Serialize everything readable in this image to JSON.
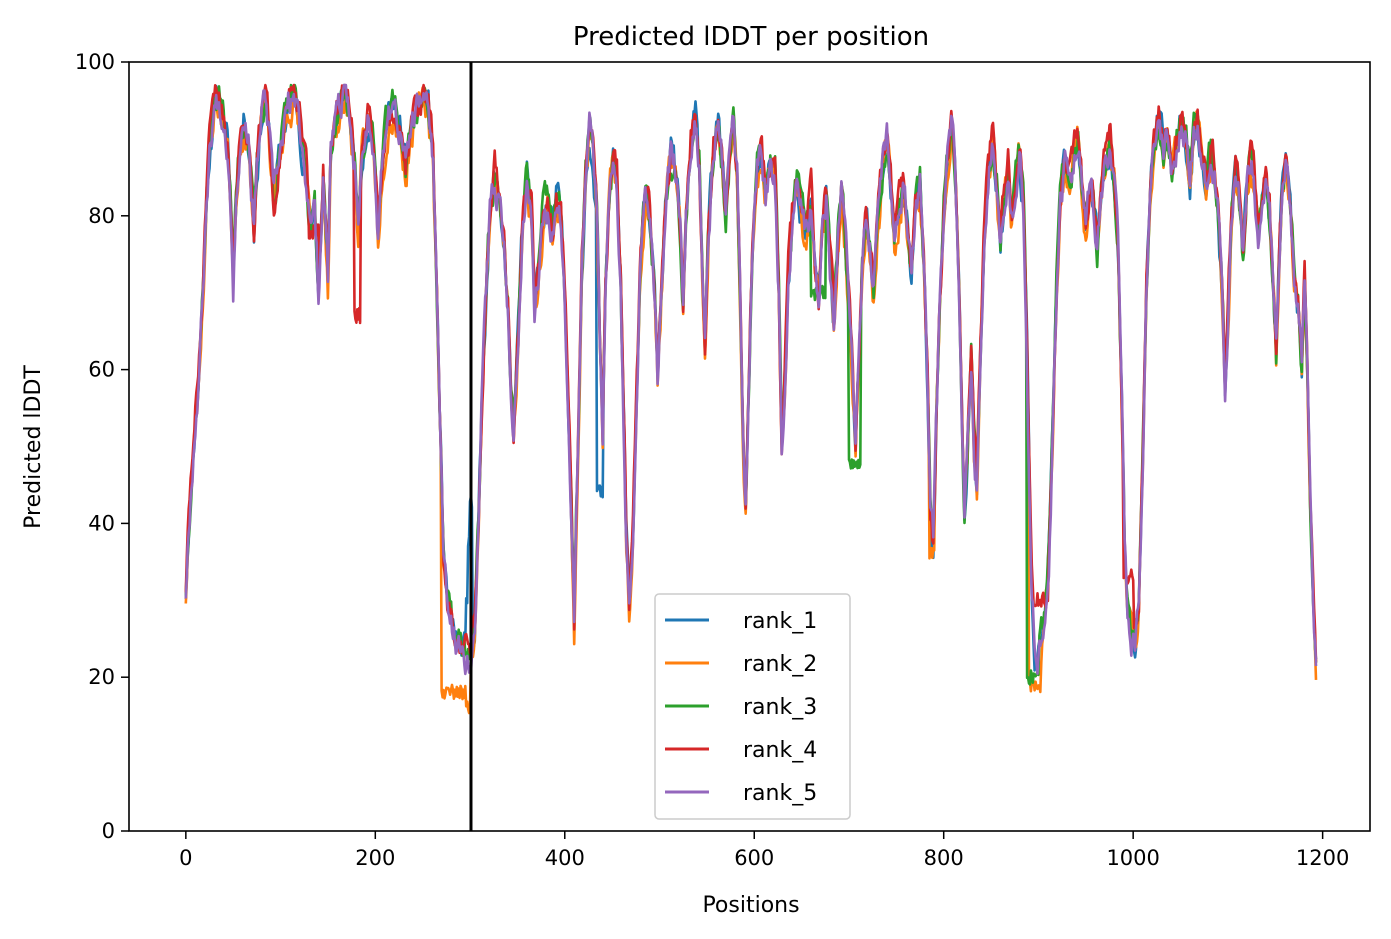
{
  "chart_data": {
    "type": "line",
    "title": "Predicted lDDT per position",
    "xlabel": "Positions",
    "ylabel": "Predicted lDDT",
    "xlim": [
      -60,
      1250
    ],
    "ylim": [
      0,
      100
    ],
    "xticks": [
      0,
      200,
      400,
      600,
      800,
      1000,
      1200
    ],
    "yticks": [
      0,
      20,
      40,
      60,
      80,
      100
    ],
    "grid": false,
    "legend_position": "lower-center",
    "vline_x": 301,
    "colors": {
      "rank_1": "#1f77b4",
      "rank_2": "#ff7f0e",
      "rank_3": "#2ca02c",
      "rank_4": "#d62728",
      "rank_5": "#9467bd",
      "vline": "#000000"
    },
    "profile": [
      [
        0,
        31
      ],
      [
        3,
        40
      ],
      [
        8,
        50
      ],
      [
        13,
        58
      ],
      [
        18,
        70
      ],
      [
        22,
        83
      ],
      [
        26,
        90
      ],
      [
        30,
        94
      ],
      [
        35,
        95
      ],
      [
        40,
        93
      ],
      [
        45,
        88
      ],
      [
        48,
        80
      ],
      [
        50,
        72
      ],
      [
        53,
        82
      ],
      [
        57,
        90
      ],
      [
        62,
        93
      ],
      [
        67,
        89
      ],
      [
        72,
        78
      ],
      [
        75,
        86
      ],
      [
        80,
        93
      ],
      [
        84,
        95
      ],
      [
        88,
        90
      ],
      [
        93,
        82
      ],
      [
        97,
        86
      ],
      [
        103,
        91
      ],
      [
        108,
        94
      ],
      [
        113,
        95
      ],
      [
        118,
        93
      ],
      [
        123,
        89
      ],
      [
        128,
        84
      ],
      [
        132,
        77
      ],
      [
        136,
        82
      ],
      [
        140,
        70
      ],
      [
        145,
        86
      ],
      [
        150,
        72
      ],
      [
        153,
        88
      ],
      [
        158,
        92
      ],
      [
        163,
        94
      ],
      [
        168,
        95
      ],
      [
        173,
        93
      ],
      [
        178,
        87
      ],
      [
        182,
        78
      ],
      [
        186,
        88
      ],
      [
        192,
        93
      ],
      [
        198,
        90
      ],
      [
        203,
        78
      ],
      [
        208,
        88
      ],
      [
        214,
        93
      ],
      [
        220,
        94
      ],
      [
        226,
        91
      ],
      [
        232,
        86
      ],
      [
        237,
        91
      ],
      [
        243,
        93
      ],
      [
        250,
        95
      ],
      [
        256,
        94
      ],
      [
        261,
        88
      ],
      [
        265,
        70
      ],
      [
        269,
        50
      ],
      [
        272,
        35
      ],
      [
        276,
        29
      ],
      [
        282,
        26
      ],
      [
        288,
        24
      ],
      [
        294,
        23
      ],
      [
        300,
        23
      ],
      [
        305,
        26
      ],
      [
        309,
        40
      ],
      [
        313,
        58
      ],
      [
        317,
        70
      ],
      [
        321,
        80
      ],
      [
        326,
        85
      ],
      [
        331,
        82
      ],
      [
        336,
        76
      ],
      [
        340,
        68
      ],
      [
        343,
        58
      ],
      [
        346,
        52
      ],
      [
        350,
        62
      ],
      [
        355,
        78
      ],
      [
        360,
        85
      ],
      [
        365,
        80
      ],
      [
        368,
        68
      ],
      [
        372,
        72
      ],
      [
        377,
        80
      ],
      [
        382,
        82
      ],
      [
        387,
        78
      ],
      [
        391,
        82
      ],
      [
        396,
        80
      ],
      [
        400,
        70
      ],
      [
        404,
        55
      ],
      [
        407,
        42
      ],
      [
        410,
        28
      ],
      [
        414,
        50
      ],
      [
        418,
        72
      ],
      [
        422,
        85
      ],
      [
        426,
        91
      ],
      [
        430,
        88
      ],
      [
        434,
        80
      ],
      [
        437,
        65
      ],
      [
        440,
        50
      ],
      [
        443,
        70
      ],
      [
        447,
        82
      ],
      [
        451,
        88
      ],
      [
        455,
        85
      ],
      [
        459,
        72
      ],
      [
        462,
        55
      ],
      [
        465,
        38
      ],
      [
        468,
        30
      ],
      [
        472,
        40
      ],
      [
        476,
        58
      ],
      [
        480,
        74
      ],
      [
        485,
        82
      ],
      [
        490,
        79
      ],
      [
        494,
        72
      ],
      [
        498,
        60
      ],
      [
        502,
        70
      ],
      [
        507,
        83
      ],
      [
        512,
        88
      ],
      [
        517,
        86
      ],
      [
        522,
        78
      ],
      [
        525,
        68
      ],
      [
        528,
        80
      ],
      [
        533,
        90
      ],
      [
        538,
        92
      ],
      [
        542,
        86
      ],
      [
        545,
        72
      ],
      [
        548,
        62
      ],
      [
        552,
        78
      ],
      [
        557,
        88
      ],
      [
        562,
        92
      ],
      [
        566,
        87
      ],
      [
        570,
        80
      ],
      [
        574,
        88
      ],
      [
        578,
        92
      ],
      [
        582,
        85
      ],
      [
        585,
        70
      ],
      [
        588,
        52
      ],
      [
        591,
        42
      ],
      [
        594,
        56
      ],
      [
        598,
        75
      ],
      [
        603,
        86
      ],
      [
        608,
        88
      ],
      [
        612,
        82
      ],
      [
        617,
        86
      ],
      [
        622,
        84
      ],
      [
        626,
        70
      ],
      [
        629,
        50
      ],
      [
        632,
        58
      ],
      [
        636,
        72
      ],
      [
        641,
        80
      ],
      [
        645,
        84
      ],
      [
        650,
        80
      ],
      [
        655,
        77
      ],
      [
        660,
        82
      ],
      [
        664,
        74
      ],
      [
        668,
        68
      ],
      [
        672,
        78
      ],
      [
        676,
        82
      ],
      [
        680,
        74
      ],
      [
        684,
        66
      ],
      [
        688,
        76
      ],
      [
        692,
        82
      ],
      [
        696,
        76
      ],
      [
        700,
        68
      ],
      [
        704,
        58
      ],
      [
        707,
        50
      ],
      [
        710,
        60
      ],
      [
        714,
        72
      ],
      [
        718,
        80
      ],
      [
        722,
        76
      ],
      [
        726,
        70
      ],
      [
        730,
        78
      ],
      [
        735,
        85
      ],
      [
        740,
        90
      ],
      [
        744,
        84
      ],
      [
        748,
        76
      ],
      [
        752,
        80
      ],
      [
        757,
        84
      ],
      [
        762,
        78
      ],
      [
        766,
        72
      ],
      [
        770,
        80
      ],
      [
        775,
        84
      ],
      [
        779,
        74
      ],
      [
        783,
        58
      ],
      [
        786,
        42
      ],
      [
        789,
        38
      ],
      [
        792,
        52
      ],
      [
        796,
        68
      ],
      [
        800,
        80
      ],
      [
        804,
        86
      ],
      [
        808,
        91
      ],
      [
        812,
        86
      ],
      [
        816,
        72
      ],
      [
        819,
        55
      ],
      [
        822,
        40
      ],
      [
        825,
        48
      ],
      [
        829,
        62
      ],
      [
        832,
        50
      ],
      [
        835,
        44
      ],
      [
        839,
        62
      ],
      [
        843,
        78
      ],
      [
        847,
        86
      ],
      [
        852,
        90
      ],
      [
        856,
        84
      ],
      [
        860,
        76
      ],
      [
        864,
        82
      ],
      [
        868,
        86
      ],
      [
        872,
        80
      ],
      [
        876,
        84
      ],
      [
        880,
        88
      ],
      [
        884,
        82
      ],
      [
        887,
        68
      ],
      [
        890,
        50
      ],
      [
        893,
        32
      ],
      [
        896,
        24
      ],
      [
        899,
        22
      ],
      [
        903,
        25
      ],
      [
        907,
        28
      ],
      [
        911,
        36
      ],
      [
        915,
        52
      ],
      [
        919,
        70
      ],
      [
        923,
        82
      ],
      [
        928,
        86
      ],
      [
        933,
        84
      ],
      [
        937,
        88
      ],
      [
        942,
        90
      ],
      [
        946,
        84
      ],
      [
        950,
        78
      ],
      [
        954,
        84
      ],
      [
        958,
        82
      ],
      [
        962,
        76
      ],
      [
        966,
        82
      ],
      [
        970,
        86
      ],
      [
        975,
        89
      ],
      [
        980,
        85
      ],
      [
        984,
        76
      ],
      [
        988,
        56
      ],
      [
        991,
        38
      ],
      [
        994,
        30
      ],
      [
        998,
        26
      ],
      [
        1002,
        25
      ],
      [
        1006,
        30
      ],
      [
        1010,
        48
      ],
      [
        1014,
        70
      ],
      [
        1018,
        84
      ],
      [
        1022,
        90
      ],
      [
        1027,
        92
      ],
      [
        1032,
        88
      ],
      [
        1036,
        91
      ],
      [
        1041,
        86
      ],
      [
        1045,
        89
      ],
      [
        1050,
        92
      ],
      [
        1055,
        90
      ],
      [
        1060,
        85
      ],
      [
        1064,
        90
      ],
      [
        1068,
        92
      ],
      [
        1073,
        88
      ],
      [
        1077,
        84
      ],
      [
        1082,
        88
      ],
      [
        1086,
        86
      ],
      [
        1090,
        80
      ],
      [
        1094,
        70
      ],
      [
        1097,
        58
      ],
      [
        1100,
        66
      ],
      [
        1104,
        80
      ],
      [
        1108,
        86
      ],
      [
        1112,
        82
      ],
      [
        1116,
        74
      ],
      [
        1120,
        84
      ],
      [
        1124,
        88
      ],
      [
        1128,
        84
      ],
      [
        1132,
        78
      ],
      [
        1136,
        82
      ],
      [
        1140,
        86
      ],
      [
        1144,
        80
      ],
      [
        1148,
        70
      ],
      [
        1151,
        62
      ],
      [
        1154,
        74
      ],
      [
        1158,
        84
      ],
      [
        1162,
        88
      ],
      [
        1166,
        82
      ],
      [
        1170,
        72
      ],
      [
        1174,
        68
      ],
      [
        1178,
        60
      ],
      [
        1181,
        72
      ],
      [
        1184,
        58
      ],
      [
        1187,
        42
      ],
      [
        1190,
        30
      ],
      [
        1193,
        22
      ]
    ],
    "series": [
      {
        "name": "rank_1",
        "color": "#1f77b4",
        "seed": 11,
        "offset": 0.0,
        "overrides": [
          [
            296,
            300,
            30
          ],
          [
            298,
            302,
            38
          ],
          [
            300,
            302,
            43
          ],
          [
            434,
            440,
            44
          ]
        ]
      },
      {
        "name": "rank_2",
        "color": "#ff7f0e",
        "seed": 23,
        "offset": -0.6,
        "overrides": [
          [
            270,
            300,
            18
          ],
          [
            296,
            300,
            16
          ],
          [
            890,
            902,
            19
          ],
          [
            785,
            790,
            36
          ]
        ]
      },
      {
        "name": "rank_3",
        "color": "#2ca02c",
        "seed": 37,
        "offset": 0.4,
        "overrides": [
          [
            700,
            712,
            48
          ],
          [
            660,
            675,
            70
          ],
          [
            888,
            900,
            20
          ]
        ]
      },
      {
        "name": "rank_4",
        "color": "#d62728",
        "seed": 51,
        "offset": 0.8,
        "overrides": [
          [
            178,
            184,
            67
          ],
          [
            130,
            140,
            78
          ],
          [
            895,
            910,
            30
          ],
          [
            990,
            1000,
            33
          ]
        ]
      },
      {
        "name": "rank_5",
        "color": "#9467bd",
        "seed": 67,
        "offset": 0.0,
        "overrides": []
      }
    ],
    "legend": [
      "rank_1",
      "rank_2",
      "rank_3",
      "rank_4",
      "rank_5"
    ]
  }
}
